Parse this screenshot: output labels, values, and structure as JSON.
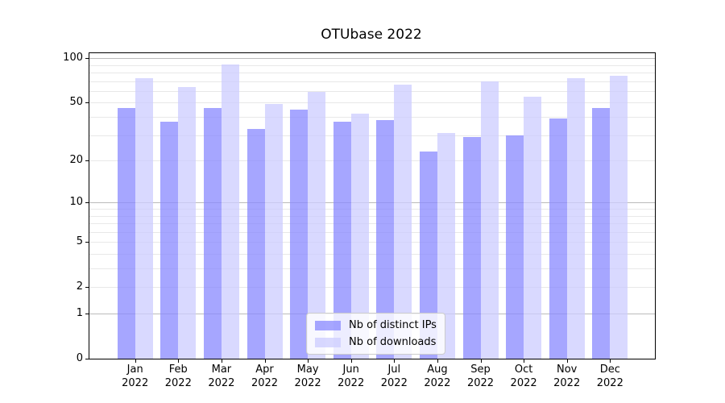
{
  "chart_data": {
    "type": "bar",
    "title": "OTUbase 2022",
    "categories": [
      "Jan 2022",
      "Feb 2022",
      "Mar 2022",
      "Apr 2022",
      "May 2022",
      "Jun 2022",
      "Jul 2022",
      "Aug 2022",
      "Sep 2022",
      "Oct 2022",
      "Nov 2022",
      "Dec 2022"
    ],
    "series": [
      {
        "name": "Nb of distinct IPs",
        "color": "rgba(136,136,255,0.75)",
        "values": [
          46,
          37,
          46,
          33,
          45,
          37,
          38,
          23,
          29,
          30,
          39,
          46
        ]
      },
      {
        "name": "Nb of downloads",
        "color": "rgba(204,204,255,0.75)",
        "values": [
          73,
          64,
          91,
          49,
          59,
          42,
          66,
          31,
          70,
          55,
          73,
          76
        ]
      }
    ],
    "y_ticks": [
      0,
      1,
      2,
      5,
      10,
      20,
      50,
      100
    ],
    "yscale": "log1p",
    "yscale_note": "tick spacing proportional to log10(value+1)",
    "ylim": [
      0,
      108
    ],
    "xlabel": "",
    "ylabel": "",
    "grid": true,
    "legend_position": "lower center"
  }
}
